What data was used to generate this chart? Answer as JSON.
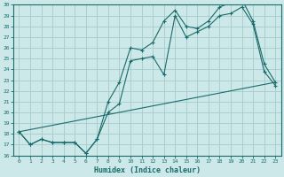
{
  "xlabel": "Humidex (Indice chaleur)",
  "bg_color": "#cce8e8",
  "line_color": "#1a6b6b",
  "grid_color": "#aacece",
  "xlim": [
    -0.5,
    23.5
  ],
  "ylim": [
    16,
    30
  ],
  "xticks": [
    0,
    1,
    2,
    3,
    4,
    5,
    6,
    7,
    8,
    9,
    10,
    11,
    12,
    13,
    14,
    15,
    16,
    17,
    18,
    19,
    20,
    21,
    22,
    23
  ],
  "yticks": [
    16,
    17,
    18,
    19,
    20,
    21,
    22,
    23,
    24,
    25,
    26,
    27,
    28,
    29,
    30
  ],
  "line1_x": [
    0,
    1,
    2,
    3,
    4,
    5,
    6,
    7,
    8,
    9,
    10,
    11,
    12,
    13,
    14,
    15,
    16,
    17,
    18,
    19,
    20,
    21,
    22,
    23
  ],
  "line1_y": [
    18.2,
    17.0,
    17.5,
    17.2,
    17.2,
    17.2,
    16.2,
    17.5,
    21.0,
    22.8,
    26.0,
    25.8,
    26.5,
    28.5,
    29.5,
    28.0,
    27.8,
    28.5,
    29.8,
    30.2,
    30.5,
    28.5,
    24.5,
    22.8
  ],
  "line2_x": [
    0,
    1,
    2,
    3,
    4,
    5,
    6,
    7,
    8,
    9,
    10,
    11,
    12,
    13,
    14,
    15,
    16,
    17,
    18,
    19,
    20,
    21,
    22,
    23
  ],
  "line2_y": [
    18.2,
    17.0,
    17.5,
    17.2,
    17.2,
    17.2,
    16.2,
    17.5,
    20.0,
    20.8,
    24.8,
    25.0,
    25.2,
    23.5,
    29.0,
    27.0,
    27.5,
    28.0,
    29.0,
    29.2,
    29.8,
    28.2,
    23.8,
    22.5
  ],
  "line3_x": [
    0,
    23
  ],
  "line3_y": [
    18.2,
    22.8
  ]
}
